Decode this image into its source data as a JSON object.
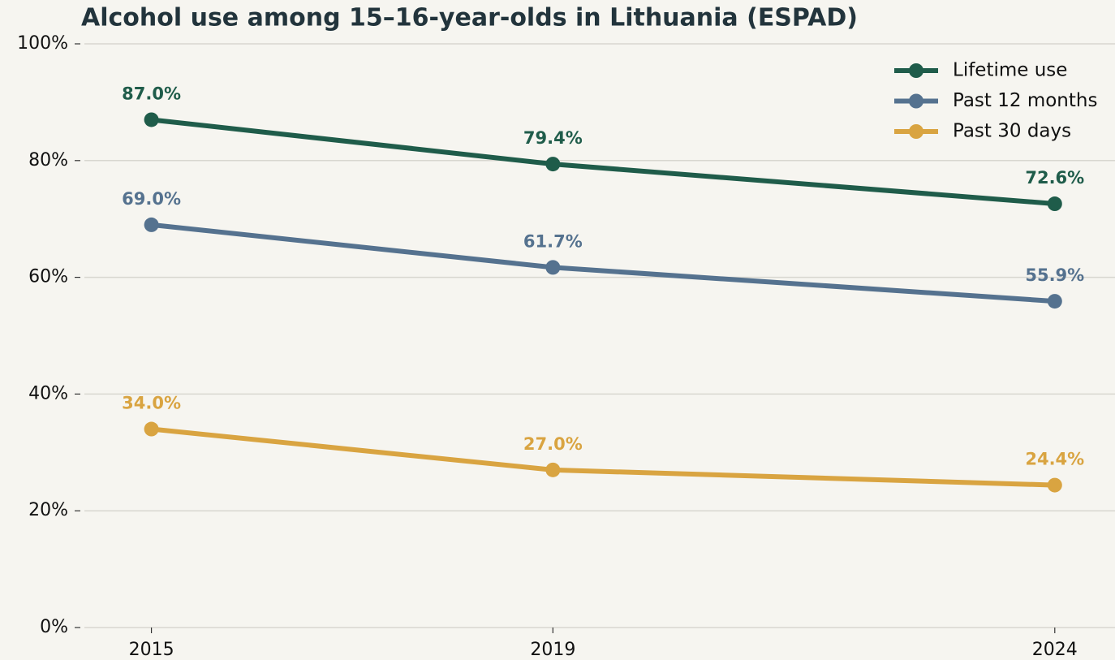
{
  "chart_data": {
    "type": "line",
    "title": "Alcohol use among 15–16-year-olds in Lithuania (ESPAD)",
    "x": [
      2015,
      2019,
      2024
    ],
    "series": [
      {
        "name": "Lifetime use",
        "color": "#1f5c4a",
        "values": [
          87.0,
          79.4,
          72.6
        ],
        "value_labels": [
          "87.0%",
          "79.4%",
          "72.6%"
        ]
      },
      {
        "name": "Past 12 months",
        "color": "#55728f",
        "values": [
          69.0,
          61.7,
          55.9
        ],
        "value_labels": [
          "69.0%",
          "61.7%",
          "55.9%"
        ]
      },
      {
        "name": "Past 30 days",
        "color": "#d9a441",
        "values": [
          34.0,
          27.0,
          24.4
        ],
        "value_labels": [
          "34.0%",
          "27.0%",
          "24.4%"
        ]
      }
    ],
    "xlim": [
      2014.3,
      2024.6
    ],
    "xticks": [
      2015,
      2019,
      2024
    ],
    "ylim": [
      0,
      100
    ],
    "yticks": [
      {
        "value": 0,
        "label": "0%"
      },
      {
        "value": 20,
        "label": "20%"
      },
      {
        "value": 40,
        "label": "40%"
      },
      {
        "value": 60,
        "label": "60%"
      },
      {
        "value": 80,
        "label": "80%"
      },
      {
        "value": 100,
        "label": "100%"
      }
    ],
    "grid": true,
    "legend": "upper right"
  }
}
